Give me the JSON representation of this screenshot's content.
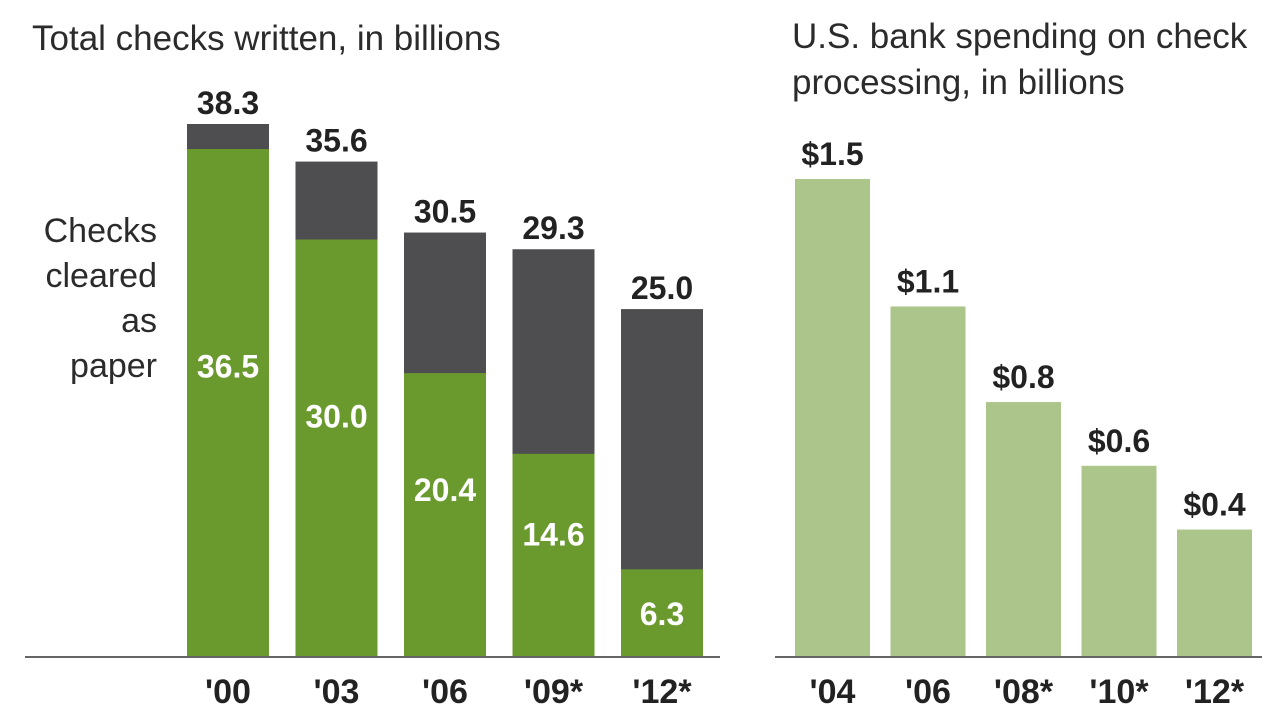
{
  "colors": {
    "paper_green": "#6a9a2e",
    "total_dark": "#4e4e50",
    "spending_green": "#abc58b",
    "baseline": "#666666"
  },
  "chart_data": [
    {
      "type": "bar",
      "stacked": true,
      "title": "Total checks written, in billions",
      "categories": [
        "'00",
        "'03",
        "'06",
        "'09*",
        "'12*"
      ],
      "totals": [
        38.3,
        35.6,
        30.5,
        29.3,
        25.0
      ],
      "total_labels": [
        "38.3",
        "35.6",
        "30.5",
        "29.3",
        "25.0"
      ],
      "series": [
        {
          "name": "Checks cleared as paper",
          "values": [
            36.5,
            30.0,
            20.4,
            14.6,
            6.3
          ],
          "labels": [
            "36.5",
            "30.0",
            "20.4",
            "14.6",
            "6.3"
          ]
        }
      ],
      "annotation": [
        "Checks",
        "cleared",
        "as",
        "paper"
      ],
      "ylim": [
        0,
        38.3
      ]
    },
    {
      "type": "bar",
      "title_lines": [
        "U.S. bank spending on check",
        "processing, in billions"
      ],
      "categories": [
        "'04",
        "'06",
        "'08*",
        "'10*",
        "'12*"
      ],
      "values": [
        1.5,
        1.1,
        0.8,
        0.6,
        0.4
      ],
      "value_labels": [
        "$1.5",
        "$1.1",
        "$0.8",
        "$0.6",
        "$0.4"
      ],
      "ylim": [
        0,
        1.5
      ]
    }
  ]
}
